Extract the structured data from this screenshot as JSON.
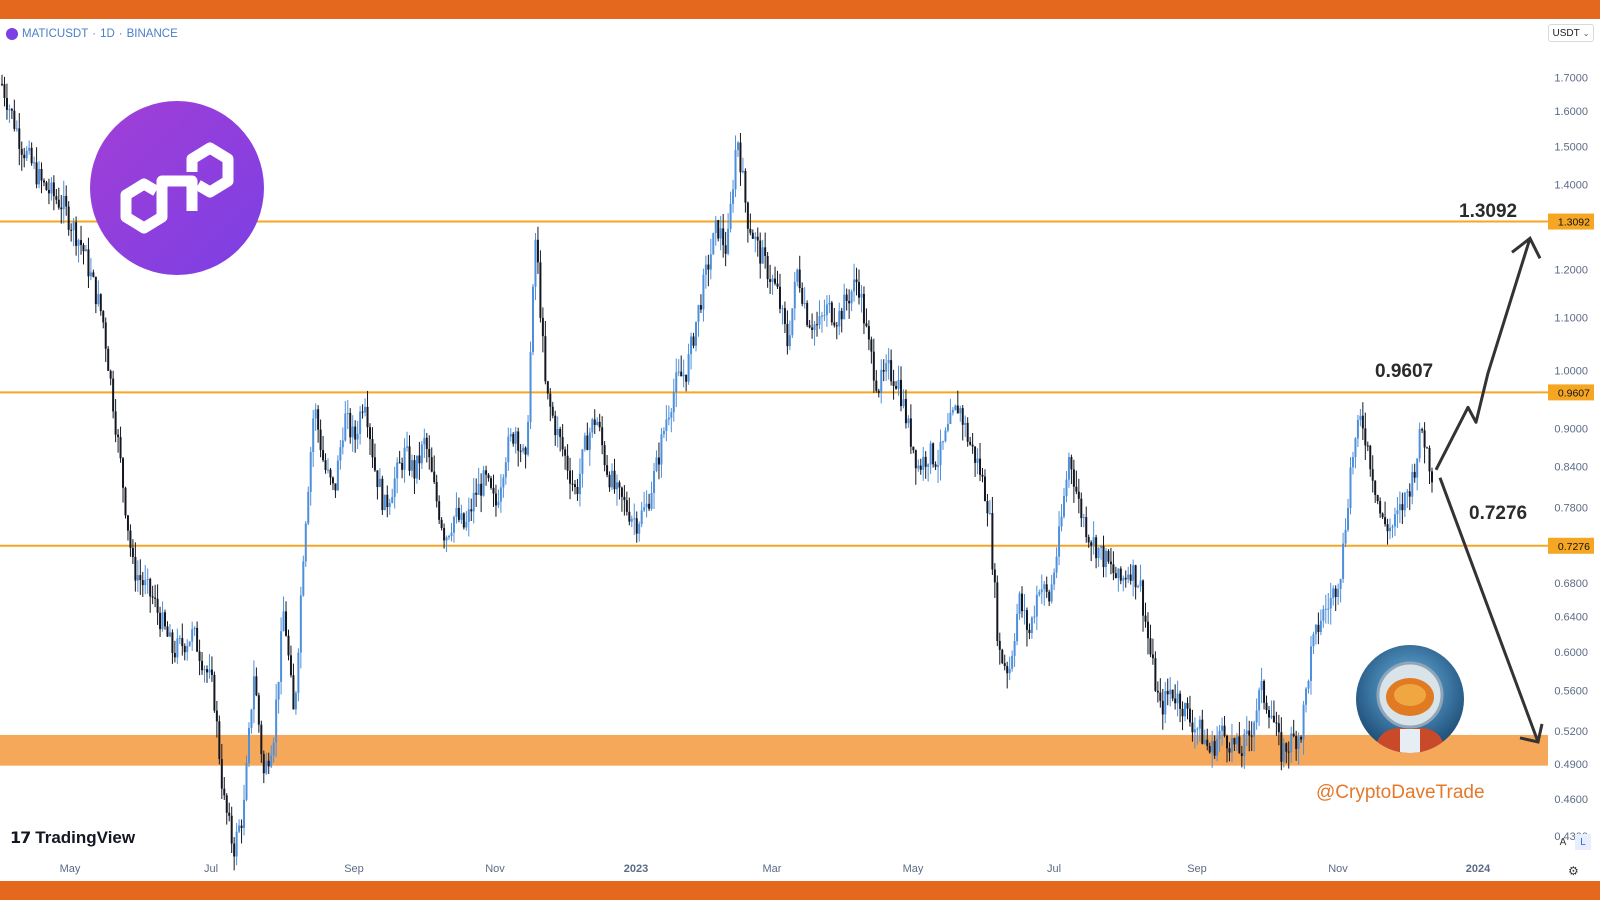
{
  "header": {
    "symbol": "MATICUSDT",
    "interval": "1D",
    "exchange": "BINANCE",
    "separator": "·"
  },
  "currency_selector": {
    "label": "USDT",
    "icon": "chevron-down-icon"
  },
  "colors": {
    "frame": "#e5681f",
    "level_line": "#f5a623",
    "support_zone": "#f6a85a",
    "bull_candle": "#4d8fdc",
    "bear_candle": "#131722",
    "price_tag": "#f5a623",
    "axis_text": "#5b6b86",
    "arrow": "#333333",
    "handle": "#e5782a",
    "logo_gradient_start": "#a23fd6",
    "logo_gradient_end": "#7b3fe4"
  },
  "watermark": {
    "brand": "TradingView"
  },
  "handle": "@CryptoDaveTrade",
  "level_labels": [
    "1.3092",
    "0.9607",
    "0.7276"
  ],
  "scale_buttons": {
    "auto": "A",
    "log": "L"
  },
  "chart_data": {
    "type": "candlestick",
    "title": "",
    "y_scale": "log",
    "ylim": [
      0.4,
      1.78
    ],
    "y_ticks": [
      "1.7000",
      "1.6000",
      "1.5000",
      "1.4000",
      "1.3000",
      "1.2000",
      "1.1000",
      "1.0000",
      "0.9000",
      "0.8400",
      "0.7800",
      "0.6800",
      "0.6400",
      "0.6000",
      "0.5600",
      "0.5200",
      "0.4900",
      "0.4600",
      "0.4300"
    ],
    "x_ticks": [
      "May",
      "Jul",
      "Sep",
      "Nov",
      "2023",
      "Mar",
      "May",
      "Jul",
      "Sep",
      "Nov",
      "2024"
    ],
    "levels": [
      {
        "label": "1.3092",
        "value": 1.3092
      },
      {
        "label": "0.9607",
        "value": 0.9607
      },
      {
        "label": "0.7276",
        "value": 0.7276
      }
    ],
    "support_zone": {
      "low": 0.4885,
      "high": 0.5165
    },
    "close_path": [
      [
        0,
        1.68
      ],
      [
        4,
        1.5
      ],
      [
        8,
        1.4
      ],
      [
        12,
        1.35
      ],
      [
        16,
        1.25
      ],
      [
        20,
        1.1
      ],
      [
        22,
        0.95
      ],
      [
        26,
        0.7
      ],
      [
        30,
        0.66
      ],
      [
        34,
        0.6
      ],
      [
        38,
        0.62
      ],
      [
        42,
        0.56
      ],
      [
        44,
        0.46
      ],
      [
        46,
        0.42
      ],
      [
        48,
        0.45
      ],
      [
        50,
        0.58
      ],
      [
        52,
        0.48
      ],
      [
        54,
        0.52
      ],
      [
        56,
        0.65
      ],
      [
        58,
        0.53
      ],
      [
        60,
        0.74
      ],
      [
        62,
        0.94
      ],
      [
        64,
        0.84
      ],
      [
        66,
        0.8
      ],
      [
        68,
        0.92
      ],
      [
        70,
        0.88
      ],
      [
        72,
        0.96
      ],
      [
        74,
        0.84
      ],
      [
        76,
        0.78
      ],
      [
        78,
        0.82
      ],
      [
        80,
        0.86
      ],
      [
        82,
        0.83
      ],
      [
        84,
        0.88
      ],
      [
        86,
        0.8
      ],
      [
        88,
        0.74
      ],
      [
        90,
        0.77
      ],
      [
        92,
        0.75
      ],
      [
        94,
        0.8
      ],
      [
        96,
        0.82
      ],
      [
        98,
        0.78
      ],
      [
        100,
        0.86
      ],
      [
        102,
        0.9
      ],
      [
        104,
        0.84
      ],
      [
        106,
        1.28
      ],
      [
        108,
        0.96
      ],
      [
        110,
        0.9
      ],
      [
        112,
        0.85
      ],
      [
        114,
        0.8
      ],
      [
        116,
        0.88
      ],
      [
        118,
        0.92
      ],
      [
        120,
        0.84
      ],
      [
        122,
        0.8
      ],
      [
        124,
        0.78
      ],
      [
        126,
        0.76
      ],
      [
        128,
        0.78
      ],
      [
        130,
        0.84
      ],
      [
        132,
        0.92
      ],
      [
        134,
        0.98
      ],
      [
        136,
        1.0
      ],
      [
        138,
        1.1
      ],
      [
        140,
        1.2
      ],
      [
        142,
        1.3
      ],
      [
        144,
        1.24
      ],
      [
        146,
        1.54
      ],
      [
        148,
        1.32
      ],
      [
        150,
        1.25
      ],
      [
        152,
        1.2
      ],
      [
        154,
        1.15
      ],
      [
        156,
        1.05
      ],
      [
        158,
        1.2
      ],
      [
        160,
        1.1
      ],
      [
        162,
        1.08
      ],
      [
        164,
        1.12
      ],
      [
        166,
        1.1
      ],
      [
        168,
        1.14
      ],
      [
        170,
        1.18
      ],
      [
        172,
        1.05
      ],
      [
        174,
        0.97
      ],
      [
        176,
        1.0
      ],
      [
        178,
        0.98
      ],
      [
        180,
        0.9
      ],
      [
        182,
        0.84
      ],
      [
        184,
        0.86
      ],
      [
        186,
        0.85
      ],
      [
        188,
        0.9
      ],
      [
        190,
        0.94
      ],
      [
        192,
        0.88
      ],
      [
        194,
        0.84
      ],
      [
        196,
        0.78
      ],
      [
        198,
        0.6
      ],
      [
        200,
        0.58
      ],
      [
        202,
        0.66
      ],
      [
        204,
        0.62
      ],
      [
        206,
        0.68
      ],
      [
        208,
        0.66
      ],
      [
        210,
        0.74
      ],
      [
        212,
        0.86
      ],
      [
        214,
        0.78
      ],
      [
        216,
        0.74
      ],
      [
        218,
        0.72
      ],
      [
        220,
        0.7
      ],
      [
        222,
        0.68
      ],
      [
        224,
        0.7
      ],
      [
        226,
        0.68
      ],
      [
        228,
        0.6
      ],
      [
        230,
        0.54
      ],
      [
        232,
        0.56
      ],
      [
        234,
        0.55
      ],
      [
        236,
        0.53
      ],
      [
        238,
        0.52
      ],
      [
        240,
        0.5
      ],
      [
        242,
        0.52
      ],
      [
        244,
        0.51
      ],
      [
        246,
        0.5
      ],
      [
        248,
        0.52
      ],
      [
        250,
        0.56
      ],
      [
        252,
        0.54
      ],
      [
        254,
        0.5
      ],
      [
        256,
        0.51
      ],
      [
        258,
        0.52
      ],
      [
        260,
        0.6
      ],
      [
        262,
        0.64
      ],
      [
        264,
        0.66
      ],
      [
        266,
        0.7
      ],
      [
        268,
        0.85
      ],
      [
        270,
        0.92
      ],
      [
        272,
        0.84
      ],
      [
        274,
        0.76
      ],
      [
        276,
        0.75
      ],
      [
        278,
        0.78
      ],
      [
        280,
        0.82
      ],
      [
        282,
        0.9
      ],
      [
        284,
        0.83
      ]
    ],
    "projections": [
      {
        "name": "up",
        "from": 0.835,
        "via": [
          0.935,
          0.91,
          0.995
        ],
        "to": 1.27
      },
      {
        "name": "down",
        "from": 0.835,
        "to": 0.51
      }
    ]
  }
}
